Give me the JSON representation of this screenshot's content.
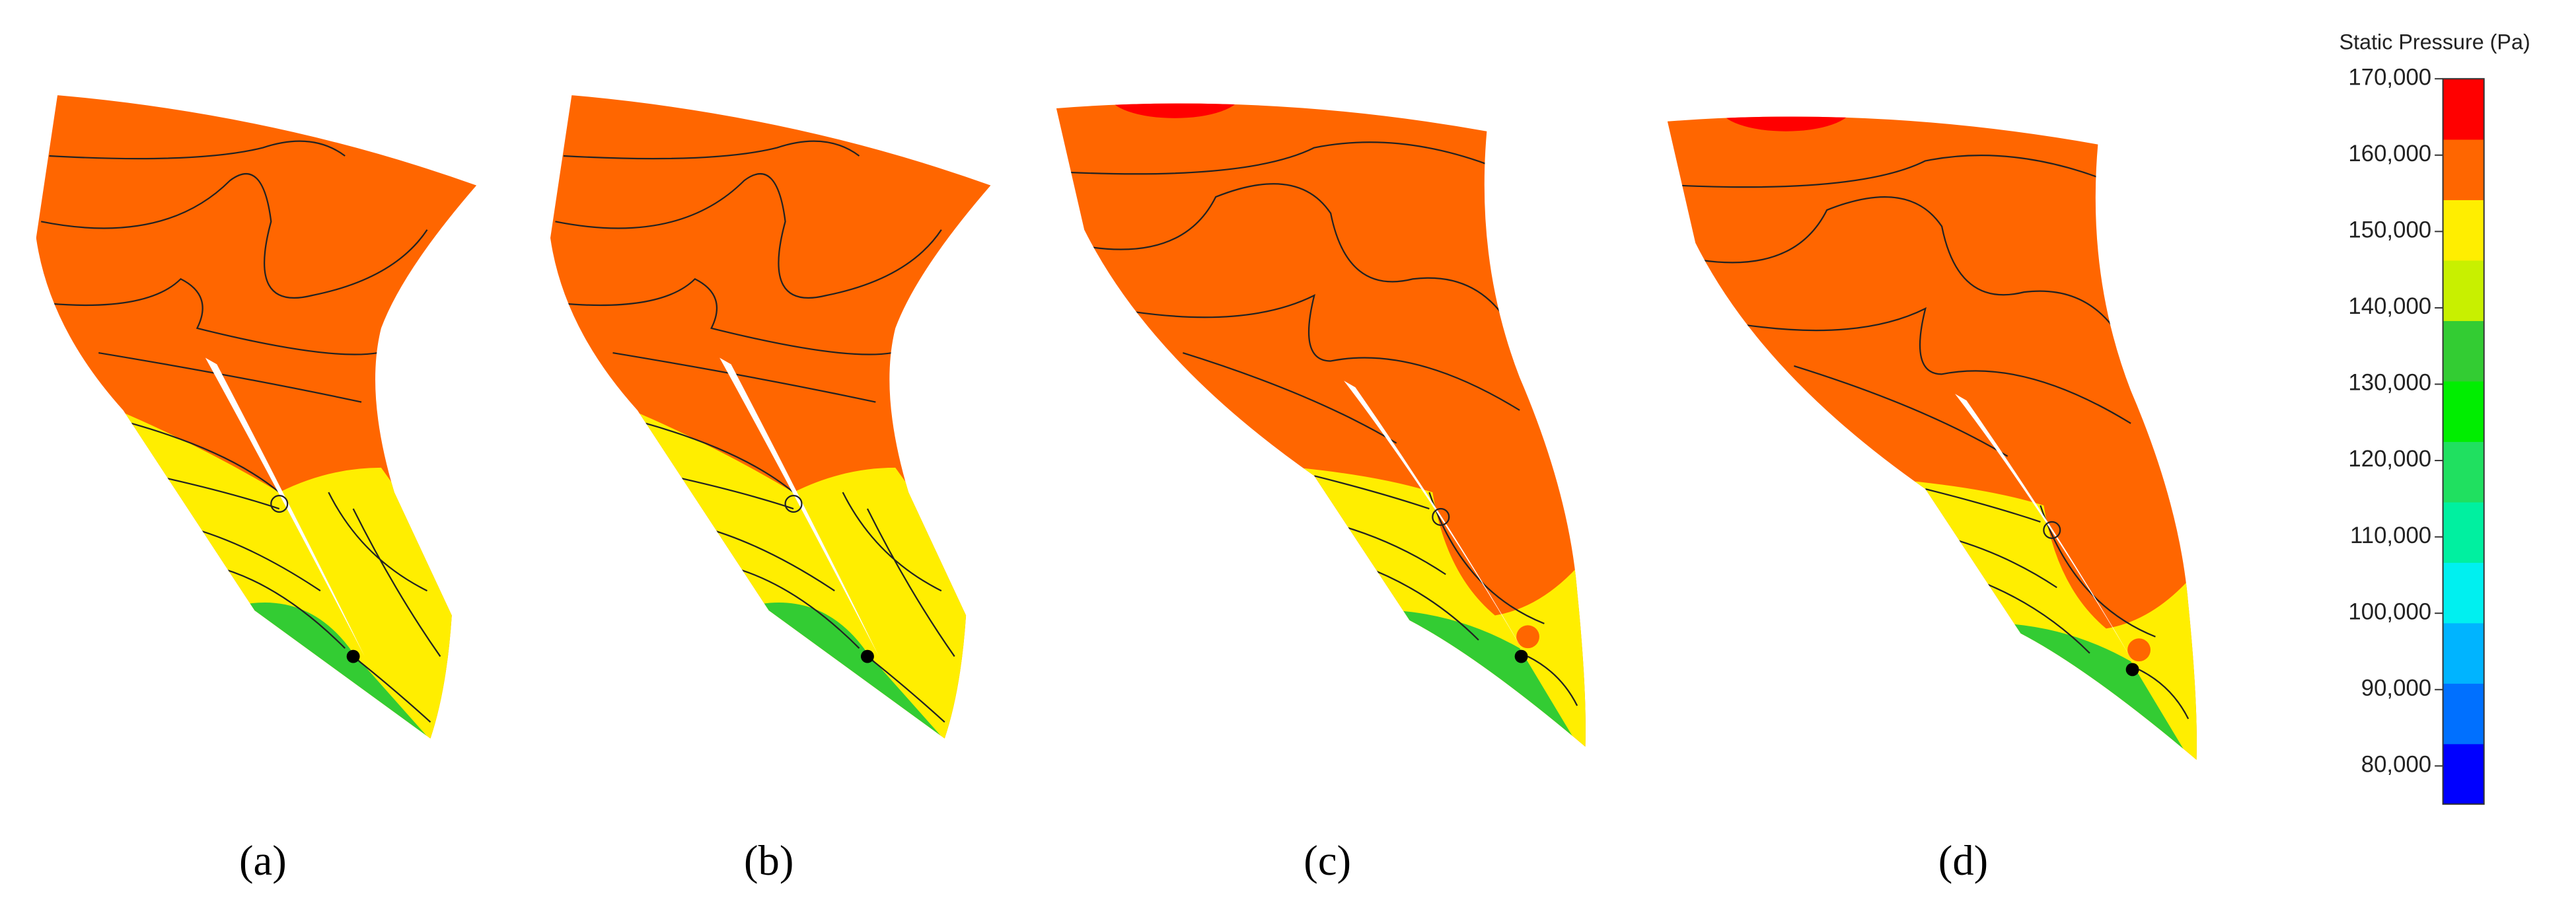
{
  "colorbar": {
    "title": "Static Pressure (Pa)",
    "clim": [
      75000,
      170000
    ],
    "colors": [
      "#0000ff",
      "#0070ff",
      "#00b4ff",
      "#00f0f0",
      "#00f0a0",
      "#20e060",
      "#00ee00",
      "#33cc33",
      "#c8f000",
      "#ffee00",
      "#ff6600",
      "#ff0000"
    ],
    "ticks": [
      {
        "value": 170000,
        "label": "170,000"
      },
      {
        "value": 160000,
        "label": "160,000"
      },
      {
        "value": 150000,
        "label": "150,000"
      },
      {
        "value": 140000,
        "label": "140,000"
      },
      {
        "value": 130000,
        "label": "130,000"
      },
      {
        "value": 120000,
        "label": "120,000"
      },
      {
        "value": 110000,
        "label": "110,000"
      },
      {
        "value": 100000,
        "label": "100,000"
      },
      {
        "value": 90000,
        "label": "90,000"
      },
      {
        "value": 80000,
        "label": "80,000"
      }
    ]
  },
  "panels": [
    {
      "label": "(a)"
    },
    {
      "label": "(b)"
    },
    {
      "label": "(c)"
    },
    {
      "label": "(d)"
    }
  ]
}
